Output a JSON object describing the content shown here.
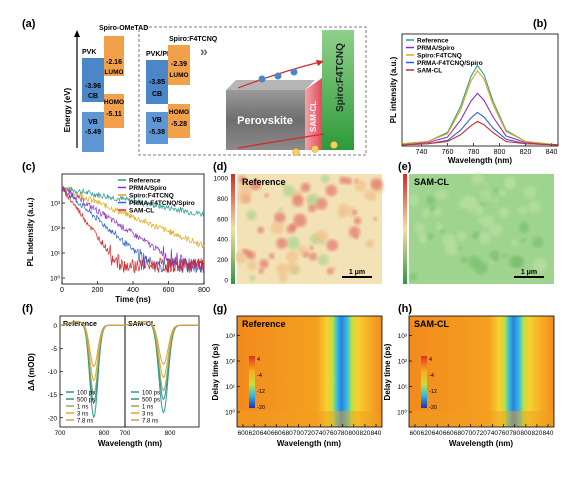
{
  "panel_letters": [
    "(a)",
    "(b)",
    "(c)",
    "(d)",
    "(e)",
    "(f)",
    "(g)",
    "(h)"
  ],
  "energy_diagram": {
    "y_label": "Energy (eV)",
    "pvk_label": "PVK",
    "spiro_label": "Spiro-OMeTAD",
    "pvk_prma_label": "PVK/PRMA",
    "spiro_f4_label": "Spiro:F4TCNQ",
    "left": {
      "cb": "-3.96",
      "vb": "-5.49",
      "lumo": "-2.16",
      "homo": "-5.11"
    },
    "right": {
      "cb": "-3.85",
      "vb": "-5.38",
      "lumo": "-2.39",
      "homo": "-5.28"
    },
    "cb_text": "CB",
    "vb_text": "VB",
    "lumo_text": "LUMO",
    "homo_text": "HOMO",
    "layer_perovskite": "Perovskite",
    "layer_samcl": "SAM-CL",
    "layer_spiro": "Spiro:F4TCNQ",
    "electron_symbol": "e⁻",
    "hole_symbol": "h⁺",
    "chevron": "»",
    "colors": {
      "cb": "#4a86c8",
      "vb": "#5f97d4",
      "lumo": "#f2a04a",
      "homo": "#f2a04a",
      "spiro": "#4caf50",
      "samcl": "#e05a6a"
    }
  },
  "chart_data": [
    {
      "id": "b",
      "type": "line",
      "xlabel": "Wavelength (nm)",
      "ylabel": "PL intensity (a.u.)",
      "xlim": [
        725,
        845
      ],
      "xticks": [
        740,
        760,
        780,
        800,
        820,
        840
      ],
      "series": [
        {
          "name": "Reference",
          "color": "#2a9d8f",
          "x": [
            725,
            745,
            760,
            770,
            778,
            783,
            788,
            795,
            805,
            820,
            845
          ],
          "y": [
            0.02,
            0.04,
            0.12,
            0.35,
            0.62,
            0.72,
            0.64,
            0.4,
            0.14,
            0.04,
            0.01
          ]
        },
        {
          "name": "PRMA/Spiro",
          "color": "#8b2fc9",
          "x": [
            725,
            745,
            760,
            770,
            778,
            783,
            788,
            795,
            805,
            820,
            845
          ],
          "y": [
            0.02,
            0.03,
            0.08,
            0.23,
            0.4,
            0.47,
            0.41,
            0.26,
            0.09,
            0.03,
            0.01
          ]
        },
        {
          "name": "Spiro:F4TCNQ",
          "color": "#e6a817",
          "x": [
            725,
            745,
            760,
            770,
            778,
            783,
            788,
            795,
            805,
            820,
            845
          ],
          "y": [
            0.02,
            0.04,
            0.11,
            0.32,
            0.58,
            0.67,
            0.6,
            0.37,
            0.13,
            0.04,
            0.01
          ]
        },
        {
          "name": "PRMA-F4TCNQ/Spiro",
          "color": "#2f5fd0",
          "x": [
            725,
            745,
            760,
            770,
            778,
            783,
            788,
            795,
            805,
            820,
            845
          ],
          "y": [
            0.01,
            0.02,
            0.05,
            0.14,
            0.25,
            0.3,
            0.26,
            0.16,
            0.06,
            0.02,
            0.01
          ]
        },
        {
          "name": "SAM-CL",
          "color": "#d62828",
          "x": [
            725,
            745,
            760,
            770,
            778,
            783,
            788,
            795,
            805,
            820,
            845
          ],
          "y": [
            0.01,
            0.02,
            0.04,
            0.1,
            0.18,
            0.22,
            0.19,
            0.12,
            0.04,
            0.02,
            0.01
          ]
        }
      ]
    },
    {
      "id": "c",
      "type": "line",
      "xlabel": "Time (ns)",
      "ylabel": "PL Indensity (a.u.)",
      "xlim": [
        0,
        800
      ],
      "xticks": [
        0,
        200,
        400,
        600,
        800
      ],
      "ytick_labels": [
        "10⁰",
        "10¹",
        "10²",
        "10³"
      ],
      "series": [
        {
          "name": "Reference",
          "color": "#2a9d8f",
          "tau": 330
        },
        {
          "name": "PRMA/Spiro",
          "color": "#8b2fc9",
          "tau": 95
        },
        {
          "name": "Spiro:F4TCNQ",
          "color": "#e6a817",
          "tau": 150
        },
        {
          "name": "PRMA-F4TCNQ/Spiro",
          "color": "#2f5fd0",
          "tau": 70
        },
        {
          "name": "SAM-CL",
          "color": "#d62828",
          "tau": 45
        }
      ]
    },
    {
      "id": "d",
      "type": "heatmap",
      "label": "Reference",
      "scale_bar": "1 μm",
      "colorbar_ticks": [
        "1000",
        "800",
        "600",
        "400",
        "200",
        "0"
      ]
    },
    {
      "id": "e",
      "type": "heatmap",
      "label": "SAM-CL",
      "scale_bar": "1 μm"
    },
    {
      "id": "f",
      "type": "line",
      "xlabel": "Wavelength (nm)",
      "ylabel": "ΔA (mOD)",
      "ylim": [
        -22,
        2
      ],
      "yticks": [
        0,
        -5,
        -10,
        -15,
        -20
      ],
      "sub_panels": [
        {
          "label": "Reference",
          "xticks": [
            700,
            800
          ]
        },
        {
          "label": "SAM-CL",
          "xticks": [
            700,
            800
          ]
        }
      ],
      "xticks_shown": [
        "700",
        "800",
        "700",
        "800"
      ],
      "series": [
        {
          "name": "100 ps",
          "color": "#2a9d8f",
          "depth": 20
        },
        {
          "name": "500 ps",
          "color": "#3c8d86",
          "depth": 17
        },
        {
          "name": "1 ns",
          "color": "#8da86a",
          "depth": 15
        },
        {
          "name": "3 ns",
          "color": "#e6a817",
          "depth": 12
        },
        {
          "name": "7.8 ns",
          "color": "#d0a24a",
          "depth": 9
        }
      ]
    },
    {
      "id": "g",
      "type": "heatmap",
      "label": "Reference",
      "xlabel": "Wavelength (nm)",
      "ylabel": "Delay time (ps)",
      "xticks": [
        600,
        620,
        640,
        660,
        680,
        700,
        720,
        740,
        760,
        780,
        800,
        820,
        840
      ],
      "ytick_labels": [
        "10⁰",
        "10¹",
        "10²",
        "10³"
      ],
      "colorbar_ticks": [
        "4",
        "-4",
        "-12",
        "-20"
      ]
    },
    {
      "id": "h",
      "type": "heatmap",
      "label": "SAM-CL",
      "xlabel": "Wavelength (nm)",
      "ylabel": "Delay time (ps)",
      "xticks": [
        600,
        620,
        640,
        660,
        680,
        700,
        720,
        740,
        760,
        780,
        800,
        820,
        840
      ],
      "ytick_labels": [
        "10⁰",
        "10¹",
        "10²",
        "10³"
      ],
      "colorbar_ticks": [
        "4",
        "-4",
        "-12",
        "-20"
      ]
    }
  ]
}
